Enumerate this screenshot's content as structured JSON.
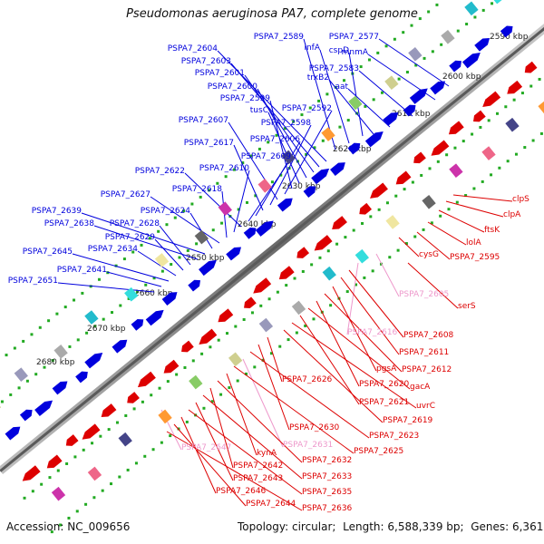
{
  "title": "Pseudomonas aeruginosa PA7, complete genome",
  "footer": {
    "accession_label": "Accession:",
    "accession": "NC_009656",
    "topology_label": "Topology:",
    "topology": "circular",
    "length_label": "Length:",
    "length": "6,588,339 bp",
    "genes_label": "Genes:",
    "genes": "6,361"
  },
  "colors": {
    "forward": "#0000dd",
    "reverse": "#dd0000",
    "pseudo": "#ee99cc",
    "backbone": "#888888",
    "ticks": "#22aa22"
  },
  "kbp_ticks": [
    "2590 kbp",
    "2600 kbp",
    "2610 kbp",
    "2620 kbp",
    "2630 kbp",
    "2640 kbp",
    "2650 kbp",
    "2660 kbp",
    "2670 kbp",
    "2680 kbp"
  ],
  "forward_genes": [
    "PSPA7_2577",
    "mnmA",
    "PSPA7_2583",
    "aat",
    "trxB2",
    "cspD",
    "infA",
    "PSPA7_2589",
    "PSPA7_2604",
    "PSPA7_2603",
    "PSPA7_2601",
    "PSPA7_2600",
    "tusC",
    "PSPA7_2599",
    "PSPA7_2592",
    "PSPA7_2607",
    "PSPA7_2598",
    "PSPA7_2617",
    "PSPA7_2606",
    "PSPA7_2609",
    "PSPA7_2622",
    "PSPA7_2610",
    "PSPA7_2618",
    "PSPA7_2627",
    "PSPA7_2624",
    "PSPA7_2639",
    "PSPA7_2638",
    "PSPA7_2628",
    "PSPA7_2629",
    "PSPA7_2634",
    "PSPA7_2645",
    "PSPA7_2641",
    "PSPA7_2651"
  ],
  "reverse_genes": [
    "clpS",
    "clpA",
    "ftsK",
    "lolA",
    "PSPA7_2595",
    "cysG",
    "PSPA7_2605",
    "serS",
    "PSPA7_2616",
    "PSPA7_2608",
    "PSPA7_2611",
    "pgsA",
    "PSPA7_2612",
    "PSPA7_2620",
    "gacA",
    "PSPA7_2621",
    "uvrC",
    "PSPA7_2619",
    "PSPA7_2626",
    "PSPA7_2630",
    "PSPA7_2623",
    "PSPA7_2631",
    "PSPA7_2625",
    "PSPA7_2647",
    "kynA",
    "PSPA7_2632",
    "PSPA7_2642",
    "PSPA7_2633",
    "PSPA7_2643",
    "PSPA7_2635",
    "PSPA7_2646",
    "PSPA7_2644",
    "PSPA7_2636"
  ],
  "pseudo_genes": [
    "PSPA7_2605",
    "PSPA7_2616",
    "PSPA7_2647",
    "PSPA7_2631"
  ]
}
